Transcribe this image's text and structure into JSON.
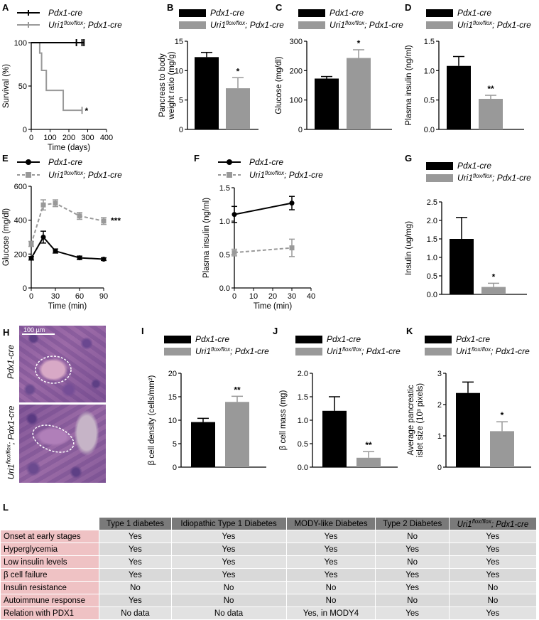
{
  "legend": {
    "ctrl": "Pdx1-cre",
    "mut_name": "Uri1",
    "mut_sup": "flox/flox",
    "mut_tail": "; Pdx1-cre"
  },
  "colors": {
    "ctrl": "#000000",
    "mut": "#999999",
    "table_head": "#7a7a7a",
    "table_rowhead": "#efc2c4",
    "table_cell": "#d9d9d9"
  },
  "chart_data": [
    {
      "panel": "A",
      "type": "line",
      "ylabel": "Survival (%)",
      "xlabel": "Time (days)",
      "xlim": [
        0,
        400
      ],
      "ylim": [
        0,
        100
      ],
      "xticks": [
        0,
        100,
        200,
        300,
        400
      ],
      "yticks": [
        0,
        50,
        100
      ],
      "series": [
        {
          "name": "Pdx1-cre",
          "steps": [
            [
              0,
              100
            ],
            [
              280,
              100
            ]
          ],
          "censor": [
            240,
            270,
            280
          ]
        },
        {
          "name": "Uri1 flox/flox; Pdx1-cre",
          "steps": [
            [
              0,
              100
            ],
            [
              45,
              100
            ],
            [
              45,
              88
            ],
            [
              55,
              88
            ],
            [
              55,
              68
            ],
            [
              80,
              68
            ],
            [
              80,
              45
            ],
            [
              170,
              45
            ],
            [
              170,
              22
            ],
            [
              270,
              22
            ]
          ],
          "censor": [
            270
          ]
        }
      ],
      "annotation": "*"
    },
    {
      "panel": "B",
      "type": "bar",
      "ylabel": "Pancreas to body weight ratio (mg/g)",
      "ylim": [
        0,
        15
      ],
      "yticks": [
        0,
        5,
        10,
        15
      ],
      "categories": [
        "Pdx1-cre",
        "Uri1 flox/flox; Pdx1-cre"
      ],
      "values": [
        12.3,
        7.0
      ],
      "errors": [
        0.8,
        1.8
      ],
      "annotations": [
        "",
        "*"
      ]
    },
    {
      "panel": "C",
      "type": "bar",
      "ylabel": "Glucose (mg/dl)",
      "ylim": [
        0,
        300
      ],
      "yticks": [
        0,
        100,
        200,
        300
      ],
      "categories": [
        "Pdx1-cre",
        "Uri1 flox/flox; Pdx1-cre"
      ],
      "values": [
        173,
        243
      ],
      "errors": [
        7,
        28
      ],
      "annotations": [
        "",
        "*"
      ]
    },
    {
      "panel": "D",
      "type": "bar",
      "ylabel": "Plasma insulin (ng/ml)",
      "ylim": [
        0,
        1.5
      ],
      "yticks": [
        0.0,
        0.5,
        1.0,
        1.5
      ],
      "categories": [
        "Pdx1-cre",
        "Uri1 flox/flox; Pdx1-cre"
      ],
      "values": [
        1.08,
        0.52
      ],
      "errors": [
        0.16,
        0.06
      ],
      "annotations": [
        "",
        "**"
      ]
    },
    {
      "panel": "E",
      "type": "line",
      "ylabel": "Glucose (mg/dl)",
      "xlabel": "Time (min)",
      "xlim": [
        0,
        90
      ],
      "ylim": [
        0,
        600
      ],
      "xticks": [
        0,
        30,
        60,
        90
      ],
      "yticks": [
        0,
        200,
        400,
        600
      ],
      "x": [
        0,
        15,
        30,
        60,
        90
      ],
      "series": [
        {
          "name": "Pdx1-cre",
          "values": [
            175,
            300,
            218,
            178,
            170
          ],
          "errors": [
            10,
            35,
            12,
            10,
            8
          ]
        },
        {
          "name": "Uri1 flox/flox; Pdx1-cre",
          "values": [
            260,
            490,
            500,
            425,
            395
          ],
          "errors": [
            15,
            30,
            20,
            20,
            20
          ]
        }
      ],
      "annotation": "***"
    },
    {
      "panel": "F",
      "type": "line",
      "ylabel": "Plasma insulin (ng/ml)",
      "xlabel": "Time (min)",
      "xlim": [
        0,
        40
      ],
      "ylim": [
        0,
        1.5
      ],
      "xticks": [
        0,
        10,
        20,
        30,
        40
      ],
      "yticks": [
        0.0,
        0.5,
        1.0,
        1.5
      ],
      "x": [
        0,
        30
      ],
      "series": [
        {
          "name": "Pdx1-cre",
          "values": [
            1.1,
            1.27
          ],
          "errors": [
            0.12,
            0.1
          ]
        },
        {
          "name": "Uri1 flox/flox; Pdx1-cre",
          "values": [
            0.53,
            0.6
          ],
          "errors": [
            0.05,
            0.13
          ]
        }
      ]
    },
    {
      "panel": "G",
      "type": "bar",
      "ylabel": "Insulin (ug/mg)",
      "ylim": [
        0,
        2.5
      ],
      "yticks": [
        0.0,
        0.5,
        1.0,
        1.5,
        2.0,
        2.5
      ],
      "categories": [
        "Pdx1-cre",
        "Uri1 flox/flox; Pdx1-cre"
      ],
      "values": [
        1.5,
        0.2
      ],
      "errors": [
        0.58,
        0.1
      ],
      "annotations": [
        "",
        "*"
      ]
    },
    {
      "panel": "I",
      "type": "bar",
      "ylabel": "β cell density (cells/mm²)",
      "ylim": [
        0,
        20
      ],
      "yticks": [
        0,
        5,
        10,
        15,
        20
      ],
      "categories": [
        "Pdx1-cre",
        "Uri1 flox/flox; Pdx1-cre"
      ],
      "values": [
        9.6,
        13.9
      ],
      "errors": [
        0.8,
        1.2
      ],
      "annotations": [
        "",
        "**"
      ]
    },
    {
      "panel": "J",
      "type": "bar",
      "ylabel": "β cell mass (mg)",
      "ylim": [
        0,
        2.0
      ],
      "yticks": [
        0.0,
        0.5,
        1.0,
        1.5,
        2.0
      ],
      "categories": [
        "Pdx1-cre",
        "Uri1 flox/flox; Pdx1-cre"
      ],
      "values": [
        1.2,
        0.2
      ],
      "errors": [
        0.3,
        0.13
      ],
      "annotations": [
        "",
        "**"
      ]
    },
    {
      "panel": "K",
      "type": "bar",
      "ylabel": "Average pancreatic islet size (10³ pixels)",
      "ylim": [
        0,
        3
      ],
      "yticks": [
        0,
        1,
        2,
        3
      ],
      "categories": [
        "Pdx1-cre",
        "Uri1 flox/flox; Pdx1-cre"
      ],
      "values": [
        2.37,
        1.15
      ],
      "errors": [
        0.35,
        0.3
      ],
      "annotations": [
        "",
        "*"
      ]
    }
  ],
  "micrograph": {
    "panel": "H",
    "scale": "100 µm",
    "top_label": "Pdx1-cre",
    "bottom_label_name": "Uri1",
    "bottom_label_sup": "flox/flox",
    "bottom_label_tail": "; Pdx1-cre"
  },
  "table": {
    "panel": "L",
    "columns": [
      "Type 1 diabetes",
      "Idiopathic Type 1 Diabetes",
      "MODY-like Diabetes",
      "Type 2 Diabetes"
    ],
    "last_col_name": "Uri1",
    "last_col_sup": "flox/flox",
    "last_col_tail": "; Pdx1-cre",
    "rows": [
      {
        "label": "Onset at early stages",
        "cells": [
          "Yes",
          "Yes",
          "Yes",
          "No",
          "Yes"
        ]
      },
      {
        "label": "Hyperglycemia",
        "cells": [
          "Yes",
          "Yes",
          "Yes",
          "Yes",
          "Yes"
        ]
      },
      {
        "label": "Low insulin levels",
        "cells": [
          "Yes",
          "Yes",
          "Yes",
          "No",
          "Yes"
        ]
      },
      {
        "label": "β cell failure",
        "cells": [
          "Yes",
          "Yes",
          "Yes",
          "Yes",
          "Yes"
        ]
      },
      {
        "label": "Insulin resistance",
        "cells": [
          "No",
          "No",
          "No",
          "Yes",
          "No"
        ]
      },
      {
        "label": "Autoimmune response",
        "cells": [
          "Yes",
          "No",
          "No",
          "No",
          "No"
        ]
      },
      {
        "label": "Relation with PDX1",
        "cells": [
          "No data",
          "No data",
          "Yes, in MODY4",
          "Yes",
          "Yes"
        ]
      }
    ]
  }
}
